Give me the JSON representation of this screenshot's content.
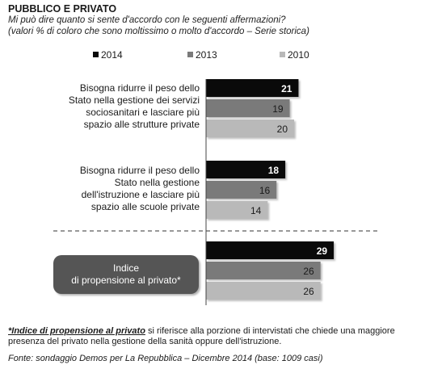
{
  "header": {
    "title": "PUBBLICO E PRIVATO",
    "subtitle_line1": "Mi può dire quanto si sente d'accordo con le seguenti affermazioni?",
    "subtitle_line2": "(valori % di coloro che sono moltissimo o molto d'accordo – Serie storica)"
  },
  "colors": {
    "2014": "#0a0a0a",
    "2013": "#7a7a7a",
    "2010": "#b9b9b9",
    "index_box": "#555555"
  },
  "chart_data": {
    "type": "bar",
    "orientation": "horizontal",
    "legend_position": "top",
    "categories": [
      [
        "Bisogna ridurre il peso dello",
        "Stato nella gestione dei servizi",
        "sociosanitari e lasciare più",
        "spazio alle strutture private"
      ],
      [
        "Bisogna ridurre il peso dello",
        "Stato nella gestione",
        "dell'istruzione e lasciare più",
        "spazio alle scuole private"
      ],
      [
        "Indice",
        "di propensione  al privato*"
      ]
    ],
    "series": [
      {
        "name": "2014",
        "values": [
          21,
          18,
          29
        ]
      },
      {
        "name": "2013",
        "values": [
          19,
          16,
          26
        ]
      },
      {
        "name": "2010",
        "values": [
          20,
          14,
          26
        ]
      }
    ],
    "xlim": [
      0,
      35
    ],
    "grid": false
  },
  "footnote": {
    "key": "*Indice di propensione al privato",
    "text": " si riferisce alla porzione di intervistati che chiede una maggiore presenza del privato nella gestione della sanità oppure dell'istruzione."
  },
  "source": "Fonte: sondaggio Demos per La Repubblica – Dicembre 2014 (base: 1009 casi)"
}
